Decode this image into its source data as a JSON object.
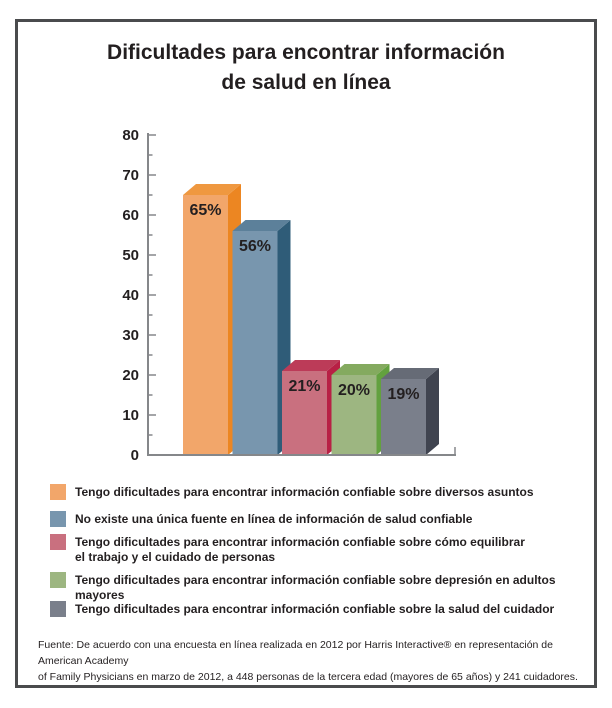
{
  "title": {
    "line1": "Dificultades para encontrar información",
    "line2": "de salud en línea"
  },
  "chart_data": {
    "type": "bar",
    "title": "Dificultades para encontrar información de salud en línea",
    "categories": [
      "Tengo dificultades para encontrar información confiable sobre diversos asuntos",
      "No existe una única fuente en línea de información de salud confiable",
      "Tengo dificultades para encontrar información confiable sobre cómo equilibrar el trabajo y el cuidado de personas",
      "Tengo dificultades para encontrar información confiable sobre depresión en adultos mayores",
      "Tengo dificultades para encontrar información confiable sobre la salud del cuidador"
    ],
    "values": [
      65,
      56,
      21,
      20,
      19
    ],
    "value_labels": [
      "65%",
      "56%",
      "21%",
      "20%",
      "19%"
    ],
    "xlabel": "",
    "ylabel": "",
    "ylim": [
      0,
      80
    ],
    "ytick_step": 10,
    "minor_tick_step": 5,
    "ytick_labels": [
      "0",
      "10",
      "20",
      "30",
      "40",
      "50",
      "60",
      "70",
      "80"
    ],
    "grid": false,
    "bar_style": "3d",
    "legend_position": "bottom",
    "axis_color": "#85878A",
    "label_color": "#231F20",
    "series_colors": [
      {
        "face": "#F2A66A",
        "side": "#EC8622",
        "top": "#EF9840"
      },
      {
        "face": "#7896AE",
        "side": "#2F5C78",
        "top": "#5C809A"
      },
      {
        "face": "#C9707F",
        "side": "#B82045",
        "top": "#BC3B58"
      },
      {
        "face": "#9DB681",
        "side": "#63A13F",
        "top": "#84AA5F"
      },
      {
        "face": "#7A7F8B",
        "side": "#404450",
        "top": "#666B76"
      }
    ]
  },
  "legend": {
    "items": [
      {
        "color": "#F2A66A",
        "label": "Tengo dificultades para encontrar información confiable sobre diversos asuntos"
      },
      {
        "color": "#7896AE",
        "label": "No existe una única fuente en línea de información de salud confiable"
      },
      {
        "color": "#C9707F",
        "label": "Tengo dificultades para encontrar información confiable sobre cómo equilibrar\nel trabajo y el cuidado de personas"
      },
      {
        "color": "#9DB681",
        "label": "Tengo dificultades para encontrar información confiable sobre depresión en adultos mayores"
      },
      {
        "color": "#7A7F8B",
        "label": "Tengo dificultades para encontrar información confiable sobre la salud del cuidador"
      }
    ]
  },
  "footnote": {
    "text": "Fuente: De acuerdo con una encuesta en línea realizada en 2012 por Harris Interactive® en representación de American Academy\nof Family Physicians en marzo de 2012, a 448 personas de la tercera edad (mayores de 65 años) y 241 cuidadores."
  }
}
